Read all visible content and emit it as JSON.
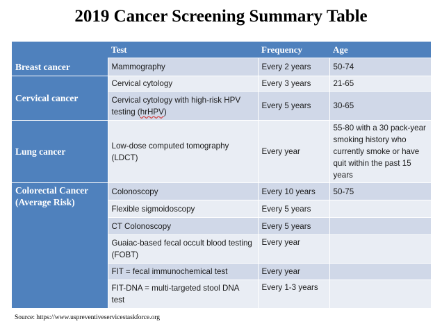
{
  "title": "2019 Cancer Screening Summary Table",
  "headers": {
    "category": "",
    "test": "Test",
    "frequency": "Frequency",
    "age": "Age"
  },
  "rows": [
    {
      "category": "Breast cancer",
      "test": "Mammography",
      "frequency": "Every 2 years",
      "age": "50-74"
    },
    {
      "category": "Cervical cancer",
      "test": "Cervical cytology",
      "frequency": "Every 3 years",
      "age": "21-65"
    },
    {
      "test": "Cervical cytology with high-risk HPV testing (",
      "test_flagged": "hrHPV",
      "test_suffix": ")",
      "frequency": "Every 5 years",
      "age": "30-65"
    },
    {
      "category": "Lung cancer",
      "test": "Low-dose computed tomography (LDCT)",
      "frequency": "Every year",
      "age": "55-80 with a 30 pack-year smoking history who currently smoke or have quit within the past 15 years"
    },
    {
      "category": "Colorectal Cancer (Average Risk)",
      "test": "Colonoscopy",
      "frequency": "Every 10 years",
      "age": "50-75"
    },
    {
      "test": "Flexible sigmoidoscopy",
      "frequency": "Every 5 years",
      "age": ""
    },
    {
      "test": "CT Colonoscopy",
      "frequency": "Every 5 years",
      "age": ""
    },
    {
      "test": "Guaiac-based fecal occult blood testing (FOBT)",
      "frequency": "Every year",
      "age": ""
    },
    {
      "test": "FIT = fecal immunochemical test",
      "frequency": "Every year",
      "age": ""
    },
    {
      "test": "FIT-DNA = multi-targeted stool DNA test",
      "frequency": "Every 1-3 years",
      "age": ""
    }
  ],
  "source": "Source:  https://www.uspreventiveservicestaskforce.org"
}
